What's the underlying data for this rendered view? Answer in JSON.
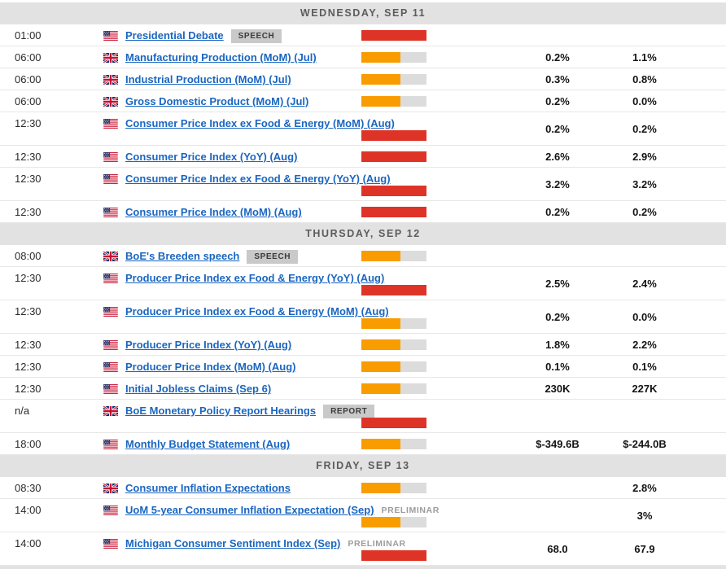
{
  "colors": {
    "impact_high": "#de3428",
    "impact_medium": "#f99c00",
    "impact_track": "#dcdcdc",
    "link": "#1b66c0",
    "header_bg": "#e2e2e2",
    "header_text": "#5c5c5c",
    "badge_bg": "#c9c9c9"
  },
  "icons": {
    "us": "us-flag-icon",
    "gb": "gb-flag-icon"
  },
  "sections": [
    {
      "date": "WEDNESDAY, SEP 11",
      "events": [
        {
          "time": "01:00",
          "country": "us",
          "title": "Presidential Debate",
          "badge": "SPEECH",
          "impact": "high",
          "tall": false,
          "consensus": "",
          "previous": ""
        },
        {
          "time": "06:00",
          "country": "gb",
          "title": "Manufacturing Production (MoM) (Jul)",
          "impact": "medium",
          "tall": false,
          "consensus": "0.2%",
          "previous": "1.1%"
        },
        {
          "time": "06:00",
          "country": "gb",
          "title": "Industrial Production (MoM) (Jul)",
          "impact": "medium",
          "tall": false,
          "consensus": "0.3%",
          "previous": "0.8%"
        },
        {
          "time": "06:00",
          "country": "gb",
          "title": "Gross Domestic Product (MoM) (Jul)",
          "impact": "medium",
          "tall": false,
          "consensus": "0.2%",
          "previous": "0.0%"
        },
        {
          "time": "12:30",
          "country": "us",
          "title": "Consumer Price Index ex Food & Energy (MoM) (Aug)",
          "impact": "high",
          "tall": true,
          "consensus": "0.2%",
          "previous": "0.2%"
        },
        {
          "time": "12:30",
          "country": "us",
          "title": "Consumer Price Index (YoY) (Aug)",
          "impact": "high",
          "tall": false,
          "consensus": "2.6%",
          "previous": "2.9%"
        },
        {
          "time": "12:30",
          "country": "us",
          "title": "Consumer Price Index ex Food & Energy (YoY) (Aug)",
          "impact": "high",
          "tall": true,
          "consensus": "3.2%",
          "previous": "3.2%"
        },
        {
          "time": "12:30",
          "country": "us",
          "title": "Consumer Price Index (MoM) (Aug)",
          "impact": "high",
          "tall": false,
          "consensus": "0.2%",
          "previous": "0.2%"
        }
      ]
    },
    {
      "date": "THURSDAY, SEP 12",
      "events": [
        {
          "time": "08:00",
          "country": "gb",
          "title": "BoE's Breeden speech",
          "badge": "SPEECH",
          "impact": "medium",
          "tall": false,
          "consensus": "",
          "previous": ""
        },
        {
          "time": "12:30",
          "country": "us",
          "title": "Producer Price Index ex Food & Energy (YoY) (Aug)",
          "impact": "high",
          "tall": true,
          "consensus": "2.5%",
          "previous": "2.4%"
        },
        {
          "time": "12:30",
          "country": "us",
          "title": "Producer Price Index ex Food & Energy (MoM) (Aug)",
          "impact": "medium",
          "tall": true,
          "consensus": "0.2%",
          "previous": "0.0%"
        },
        {
          "time": "12:30",
          "country": "us",
          "title": "Producer Price Index (YoY) (Aug)",
          "impact": "medium",
          "tall": false,
          "consensus": "1.8%",
          "previous": "2.2%"
        },
        {
          "time": "12:30",
          "country": "us",
          "title": "Producer Price Index (MoM) (Aug)",
          "impact": "medium",
          "tall": false,
          "consensus": "0.1%",
          "previous": "0.1%"
        },
        {
          "time": "12:30",
          "country": "us",
          "title": "Initial Jobless Claims (Sep 6)",
          "impact": "medium",
          "tall": false,
          "consensus": "230K",
          "previous": "227K"
        },
        {
          "time": "n/a",
          "country": "gb",
          "title": "BoE Monetary Policy Report Hearings",
          "badge": "REPORT",
          "impact": "high",
          "tall": true,
          "consensus": "",
          "previous": ""
        },
        {
          "time": "18:00",
          "country": "us",
          "title": "Monthly Budget Statement (Aug)",
          "impact": "medium",
          "tall": false,
          "consensus": "$-349.6B",
          "previous": "$-244.0B"
        }
      ]
    },
    {
      "date": "FRIDAY, SEP 13",
      "events": [
        {
          "time": "08:30",
          "country": "gb",
          "title": "Consumer Inflation Expectations",
          "impact": "medium",
          "tall": false,
          "consensus": "",
          "previous": "2.8%"
        },
        {
          "time": "14:00",
          "country": "us",
          "title": "UoM 5-year Consumer Inflation Expectation (Sep)",
          "note": "PRELIMINAR",
          "impact": "medium",
          "tall": true,
          "consensus": "",
          "previous": "3%"
        },
        {
          "time": "14:00",
          "country": "us",
          "title": "Michigan Consumer Sentiment Index (Sep)",
          "note": "PRELIMINAR",
          "impact": "high",
          "tall": true,
          "consensus": "68.0",
          "previous": "67.9"
        }
      ]
    }
  ]
}
